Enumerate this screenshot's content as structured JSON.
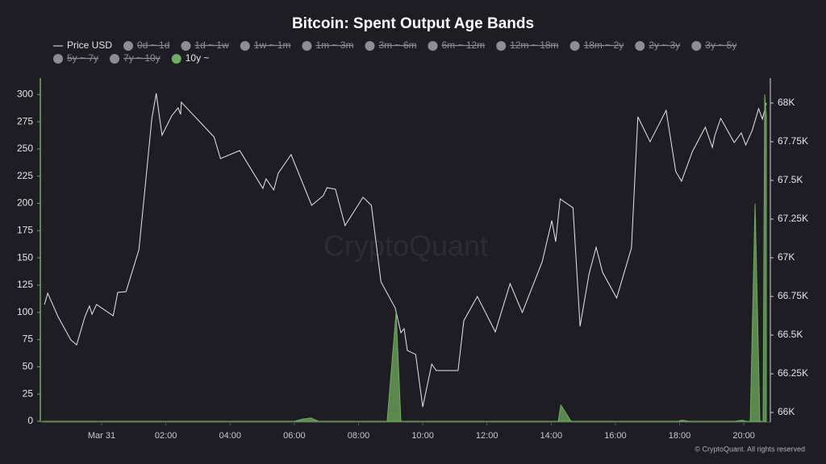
{
  "chart_data": {
    "type": "line",
    "title": "Bitcoin: Spent Output Age Bands",
    "watermark": "CryptoQuant",
    "footer": "© CryptoQuant. All rights reserved",
    "xlim": [
      -1.91,
      20.7
    ],
    "xticks": [
      {
        "value": 0,
        "label": "Mar 31"
      },
      {
        "value": 2,
        "label": "02:00"
      },
      {
        "value": 4,
        "label": "04:00"
      },
      {
        "value": 6,
        "label": "06:00"
      },
      {
        "value": 8,
        "label": "08:00"
      },
      {
        "value": 10,
        "label": "10:00"
      },
      {
        "value": 12,
        "label": "12:00"
      },
      {
        "value": 14,
        "label": "14:00"
      },
      {
        "value": 16,
        "label": "16:00"
      },
      {
        "value": 18,
        "label": "18:00"
      },
      {
        "value": 20,
        "label": "20:00"
      }
    ],
    "ylim": [
      0,
      315
    ],
    "yticks": [
      0,
      25,
      50,
      75,
      100,
      125,
      150,
      175,
      200,
      225,
      250,
      275,
      300
    ],
    "y2lim": [
      65943,
      68161
    ],
    "y2ticks": [
      {
        "value": 66000,
        "label": "66K"
      },
      {
        "value": 66250,
        "label": "66.25K"
      },
      {
        "value": 66500,
        "label": "66.5K"
      },
      {
        "value": 66750,
        "label": "66.75K"
      },
      {
        "value": 67000,
        "label": "67K"
      },
      {
        "value": 67250,
        "label": "67.25K"
      },
      {
        "value": 67500,
        "label": "67.5K"
      },
      {
        "value": 67750,
        "label": "67.75K"
      },
      {
        "value": 68000,
        "label": "68K"
      }
    ],
    "grid": false,
    "series": [
      {
        "name": "Price USD",
        "color": "#e8e8ec",
        "axis": "y2",
        "kind": "line",
        "x": [
          -1.78,
          -1.68,
          -1.36,
          -0.96,
          -0.78,
          -0.52,
          -0.38,
          -0.3,
          -0.16,
          0.36,
          0.5,
          0.76,
          1.16,
          1.36,
          1.56,
          1.7,
          1.88,
          2.18,
          2.38,
          2.46,
          2.48,
          3.5,
          3.7,
          4.3,
          5.02,
          5.12,
          5.36,
          5.5,
          5.9,
          6.54,
          6.9,
          7.02,
          7.28,
          7.58,
          8.14,
          8.4,
          8.7,
          9.14,
          9.32,
          9.42,
          9.52,
          9.78,
          10,
          10.28,
          10.42,
          11.1,
          11.28,
          11.7,
          12.26,
          12.72,
          13.1,
          13.72,
          14.02,
          14.14,
          14.28,
          14.68,
          14.9,
          15.18,
          15.4,
          15.6,
          16.04,
          16.5,
          16.7,
          17.08,
          17.58,
          17.88,
          18.06,
          18.4,
          18.8,
          19.02,
          19.1,
          19.28,
          19.7,
          19.92,
          20.06,
          20.26,
          20.46,
          20.58,
          20.7
        ],
        "values": [
          66698,
          66771,
          66620,
          66469,
          66437,
          66620,
          66688,
          66635,
          66698,
          66625,
          66776,
          66781,
          67052,
          67469,
          67896,
          68063,
          67792,
          67917,
          67969,
          67927,
          68005,
          67781,
          67641,
          67693,
          67448,
          67510,
          67438,
          67547,
          67667,
          67339,
          67401,
          67453,
          67443,
          67208,
          67391,
          67339,
          66844,
          66677,
          66516,
          66542,
          66401,
          66375,
          66036,
          66313,
          66271,
          66271,
          66594,
          66750,
          66521,
          66833,
          66646,
          66974,
          67240,
          67104,
          67380,
          67323,
          66557,
          66896,
          67068,
          66906,
          66740,
          67063,
          67911,
          67750,
          67953,
          67557,
          67495,
          67688,
          67844,
          67714,
          67792,
          67901,
          67745,
          67807,
          67729,
          67823,
          67964,
          67896,
          68000
        ]
      },
      {
        "name": "0d ~ 1d",
        "color": "#8d8d97",
        "visible": false
      },
      {
        "name": "1d ~ 1w",
        "color": "#8d8d97",
        "visible": false
      },
      {
        "name": "1w ~ 1m",
        "color": "#8d8d97",
        "visible": false
      },
      {
        "name": "1m ~ 3m",
        "color": "#8d8d97",
        "visible": false
      },
      {
        "name": "3m ~ 6m",
        "color": "#8d8d97",
        "visible": false
      },
      {
        "name": "6m ~ 12m",
        "color": "#8d8d97",
        "visible": false
      },
      {
        "name": "12m ~ 18m",
        "color": "#8d8d97",
        "visible": false
      },
      {
        "name": "18m ~ 2y",
        "color": "#8d8d97",
        "visible": false
      },
      {
        "name": "2y ~ 3y",
        "color": "#8d8d97",
        "visible": false
      },
      {
        "name": "3y ~ 5y",
        "color": "#8d8d97",
        "visible": false
      },
      {
        "name": "5y ~ 7y",
        "color": "#8d8d97",
        "visible": false
      },
      {
        "name": "7y ~ 10y",
        "color": "#8d8d97",
        "visible": false
      },
      {
        "name": "10y ~",
        "color": "#6fae5e",
        "axis": "y",
        "kind": "area",
        "x": [
          -1.86,
          6.0,
          6.26,
          6.51,
          6.76,
          8.89,
          9.17,
          9.32,
          14.22,
          14.3,
          14.62,
          17.94,
          18.07,
          18.32,
          19.7,
          19.95,
          20.08,
          20.2,
          20.35,
          20.5,
          20.6,
          20.65,
          20.7
        ],
        "values": [
          0,
          0,
          2,
          3,
          0,
          0,
          100,
          0,
          0,
          15,
          0,
          0,
          1,
          0,
          0,
          1,
          0,
          0,
          200,
          0,
          0,
          300,
          280
        ]
      }
    ]
  }
}
